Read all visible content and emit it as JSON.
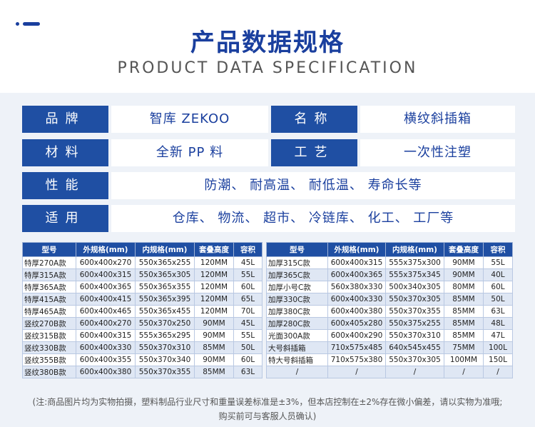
{
  "header": {
    "title": "产品数据规格",
    "subtitle": "PRODUCT DATA SPECIFICATION"
  },
  "specs": {
    "brand_label": "品牌",
    "brand_value": "智库 ZEKOO",
    "name_label": "名称",
    "name_value": "横纹斜插箱",
    "material_label": "材料",
    "material_value": "全新 PP 料",
    "process_label": "工艺",
    "process_value": "一次性注塑",
    "property_label": "性能",
    "property_value": "防潮、 耐高温、 耐低温、 寿命长等",
    "usage_label": "适用",
    "usage_value": "仓库、 物流、 超市、 冷链库、 化工、 工厂等"
  },
  "table_left": {
    "headers": [
      "型号",
      "外规格(mm)",
      "内规格(mm)",
      "套叠高度",
      "容积"
    ],
    "rows": [
      [
        "特厚270A款",
        "600x400x270",
        "550x365x255",
        "120MM",
        "45L"
      ],
      [
        "特厚315A款",
        "600x400x315",
        "550x365x305",
        "120MM",
        "55L"
      ],
      [
        "特厚365A款",
        "600x400x365",
        "550x365x355",
        "120MM",
        "60L"
      ],
      [
        "特厚415A款",
        "600x400x415",
        "550x365x395",
        "120MM",
        "65L"
      ],
      [
        "特厚465A款",
        "600x400x465",
        "550x365x455",
        "120MM",
        "70L"
      ],
      [
        "竖纹270B款",
        "600x400x270",
        "550x370x250",
        "90MM",
        "45L"
      ],
      [
        "竖纹315B款",
        "600x400x315",
        "555x365x295",
        "90MM",
        "55L"
      ],
      [
        "竖纹330B款",
        "600x400x330",
        "550x370x310",
        "85MM",
        "50L"
      ],
      [
        "竖纹355B款",
        "600x400x355",
        "550x370x340",
        "90MM",
        "60L"
      ],
      [
        "竖纹380B款",
        "600x400x380",
        "550x370x355",
        "85MM",
        "63L"
      ]
    ]
  },
  "table_right": {
    "headers": [
      "型号",
      "外规格(mm)",
      "内规格(mm)",
      "套叠高度",
      "容积"
    ],
    "rows": [
      [
        "加厚315C款",
        "600x400x315",
        "555x375x300",
        "90MM",
        "55L"
      ],
      [
        "加厚365C款",
        "600x400x365",
        "555x375x345",
        "90MM",
        "40L"
      ],
      [
        "加厚小号C款",
        "560x380x330",
        "500x340x305",
        "80MM",
        "60L"
      ],
      [
        "加厚330C款",
        "600x400x330",
        "550x370x305",
        "85MM",
        "50L"
      ],
      [
        "加厚380C款",
        "600x400x380",
        "550x370x355",
        "85MM",
        "63L"
      ],
      [
        "加厚280C款",
        "600x405x280",
        "550x375x255",
        "85MM",
        "48L"
      ],
      [
        "光面300A款",
        "600x400x290",
        "550x370x310",
        "85MM",
        "47L"
      ],
      [
        "大号斜插箱",
        "710x575x485",
        "640x545x455",
        "75MM",
        "100L"
      ],
      [
        "特大号斜插箱",
        "710x575x380",
        "550x370x305",
        "100MM",
        "150L"
      ],
      [
        "/",
        "/",
        "/",
        "/",
        "/"
      ]
    ]
  },
  "note": {
    "line1": "(注:商品图片均为实物拍摄，塑料制品行业尺寸和重量误差标准是±3%，但本店控制在±2%存在微小偏差，请以实物为准哦;",
    "line2": "购买前可与客服人员确认)"
  }
}
